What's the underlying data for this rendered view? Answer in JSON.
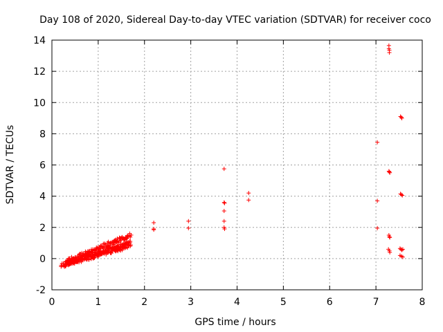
{
  "chart_data": {
    "type": "scatter",
    "title": "Day 108 of 2020, Sidereal Day-to-day VTEC variation (SDTVAR) for receiver coco",
    "xlabel": "GPS time / hours",
    "ylabel": "SDTVAR / TECUs",
    "xlim": [
      0,
      8
    ],
    "ylim": [
      -2,
      14
    ],
    "xticks": [
      0,
      1,
      2,
      3,
      4,
      5,
      6,
      7,
      8
    ],
    "yticks": [
      -2,
      0,
      2,
      4,
      6,
      8,
      10,
      12,
      14
    ],
    "grid": true,
    "legend": "none",
    "series": [
      {
        "name": "SDTVAR",
        "color": "#ff0000",
        "marker": "+",
        "dense_bands": [
          {
            "x_start": 0.2,
            "x_end": 1.7,
            "y_start": -0.45,
            "y_end": 0.85,
            "width": 0.3
          },
          {
            "x_start": 0.3,
            "x_end": 1.7,
            "y_start": -0.2,
            "y_end": 1.5,
            "width": 0.3
          },
          {
            "x_start": 0.3,
            "x_end": 1.7,
            "y_start": -0.3,
            "y_end": 1.0,
            "width": 0.25
          }
        ],
        "points": [
          [
            2.2,
            2.3
          ],
          [
            2.2,
            1.9
          ],
          [
            2.2,
            1.85
          ],
          [
            2.95,
            2.4
          ],
          [
            2.95,
            1.95
          ],
          [
            3.72,
            5.75
          ],
          [
            3.72,
            3.6
          ],
          [
            3.73,
            3.55
          ],
          [
            3.72,
            3.05
          ],
          [
            3.72,
            2.4
          ],
          [
            3.72,
            2.0
          ],
          [
            3.73,
            1.9
          ],
          [
            4.25,
            4.2
          ],
          [
            4.25,
            3.75
          ],
          [
            7.03,
            7.45
          ],
          [
            7.03,
            3.7
          ],
          [
            7.03,
            1.95
          ],
          [
            7.28,
            13.65
          ],
          [
            7.28,
            13.45
          ],
          [
            7.29,
            13.35
          ],
          [
            7.29,
            13.2
          ],
          [
            7.28,
            5.6
          ],
          [
            7.29,
            5.55
          ],
          [
            7.3,
            5.5
          ],
          [
            7.28,
            1.5
          ],
          [
            7.29,
            1.4
          ],
          [
            7.3,
            1.35
          ],
          [
            7.27,
            0.6
          ],
          [
            7.29,
            0.5
          ],
          [
            7.3,
            0.4
          ],
          [
            7.53,
            9.1
          ],
          [
            7.55,
            9.05
          ],
          [
            7.56,
            9.0
          ],
          [
            7.53,
            4.15
          ],
          [
            7.55,
            4.1
          ],
          [
            7.57,
            4.05
          ],
          [
            7.52,
            0.65
          ],
          [
            7.54,
            0.6
          ],
          [
            7.56,
            0.55
          ],
          [
            7.58,
            0.6
          ],
          [
            7.52,
            0.2
          ],
          [
            7.55,
            0.15
          ],
          [
            7.58,
            0.1
          ]
        ]
      }
    ]
  }
}
